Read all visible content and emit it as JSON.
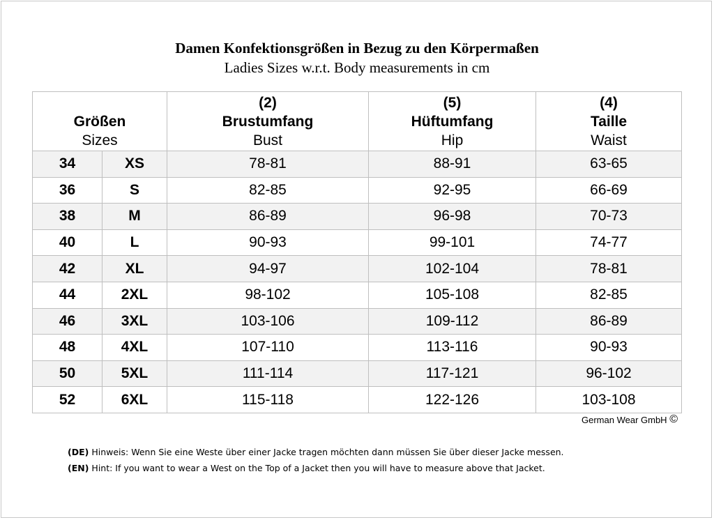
{
  "title": {
    "de": "Damen Konfektionsgrößen in Bezug zu den Körpermaßen",
    "en": "Ladies Sizes w.r.t. Body measurements in cm"
  },
  "header": {
    "sizes": {
      "de": "Größen",
      "en": "Sizes"
    },
    "bust": {
      "num": "(2)",
      "de": "Brustumfang",
      "en": "Bust"
    },
    "hip": {
      "num": "(5)",
      "de": "Hüftumfang",
      "en": "Hip"
    },
    "waist": {
      "num": "(4)",
      "de": "Taille",
      "en": "Waist"
    }
  },
  "rows": [
    {
      "eu": "34",
      "label": "XS",
      "bust": "78-81",
      "hip": "88-91",
      "waist": "63-65"
    },
    {
      "eu": "36",
      "label": "S",
      "bust": "82-85",
      "hip": "92-95",
      "waist": "66-69"
    },
    {
      "eu": "38",
      "label": "M",
      "bust": "86-89",
      "hip": "96-98",
      "waist": "70-73"
    },
    {
      "eu": "40",
      "label": "L",
      "bust": "90-93",
      "hip": "99-101",
      "waist": "74-77"
    },
    {
      "eu": "42",
      "label": "XL",
      "bust": "94-97",
      "hip": "102-104",
      "waist": "78-81"
    },
    {
      "eu": "44",
      "label": "2XL",
      "bust": "98-102",
      "hip": "105-108",
      "waist": "82-85"
    },
    {
      "eu": "46",
      "label": "3XL",
      "bust": "103-106",
      "hip": "109-112",
      "waist": "86-89"
    },
    {
      "eu": "48",
      "label": "4XL",
      "bust": "107-110",
      "hip": "113-116",
      "waist": "90-93"
    },
    {
      "eu": "50",
      "label": "5XL",
      "bust": "111-114",
      "hip": "117-121",
      "waist": "96-102"
    },
    {
      "eu": "52",
      "label": "6XL",
      "bust": "115-118",
      "hip": "122-126",
      "waist": "103-108"
    }
  ],
  "copyright": {
    "text": "German Wear GmbH",
    "symbol": "©"
  },
  "hints": {
    "de": {
      "tag": "(DE)",
      "text": "Hinweis: Wenn Sie eine Weste über einer Jacke tragen möchten dann müssen Sie über dieser Jacke messen."
    },
    "en": {
      "tag": "(EN)",
      "text": "Hint: If you want to wear a West on the Top of a Jacket then you will have to measure above that Jacket."
    }
  },
  "colors": {
    "row_shade": "#f2f2f2",
    "border": "#bfbfbf"
  }
}
